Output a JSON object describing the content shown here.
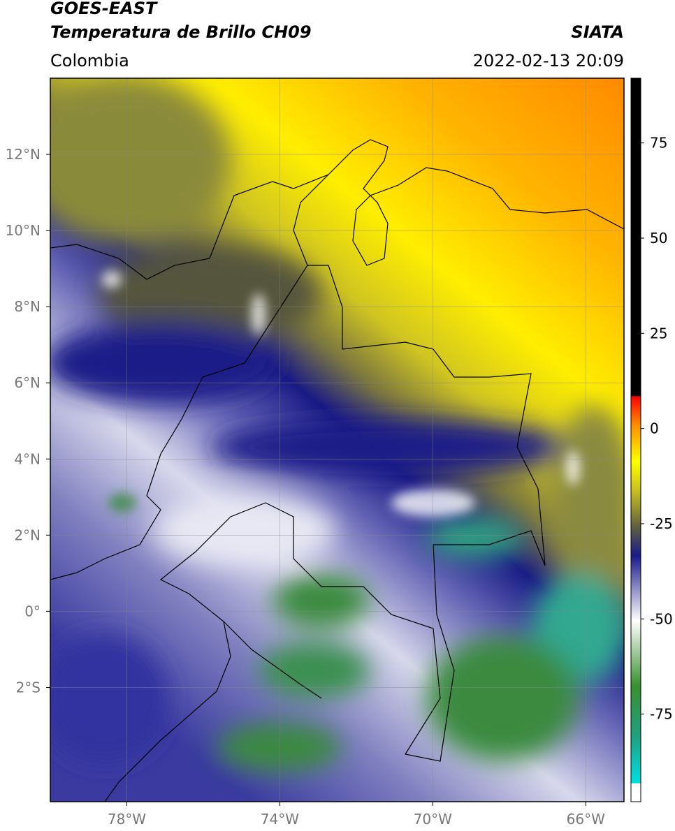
{
  "header": {
    "title": "GOES-EAST",
    "subtitle": "Temperatura de Brillo CH09",
    "source": "SIATA",
    "region": "Colombia",
    "timestamp": "2022-02-13 20:09"
  },
  "map": {
    "xlim": [
      -80,
      -65
    ],
    "ylim": [
      -5,
      14
    ],
    "xticks": [
      {
        "value": -78,
        "label": "78°W"
      },
      {
        "value": -74,
        "label": "74°W"
      },
      {
        "value": -70,
        "label": "70°W"
      },
      {
        "value": -66,
        "label": "66°W"
      }
    ],
    "yticks": [
      {
        "value": 12,
        "label": "12°N"
      },
      {
        "value": 10,
        "label": "10°N"
      },
      {
        "value": 8,
        "label": "8°N"
      },
      {
        "value": 6,
        "label": "6°N"
      },
      {
        "value": 4,
        "label": "4°N"
      },
      {
        "value": 2,
        "label": "2°N"
      },
      {
        "value": 0,
        "label": "0°"
      },
      {
        "value": -2,
        "label": "2°S"
      }
    ],
    "grid": true
  },
  "colorbar": {
    "lim": [
      -98,
      92
    ],
    "ticks": [
      75,
      50,
      25,
      0,
      -25,
      -50,
      -75
    ]
  }
}
